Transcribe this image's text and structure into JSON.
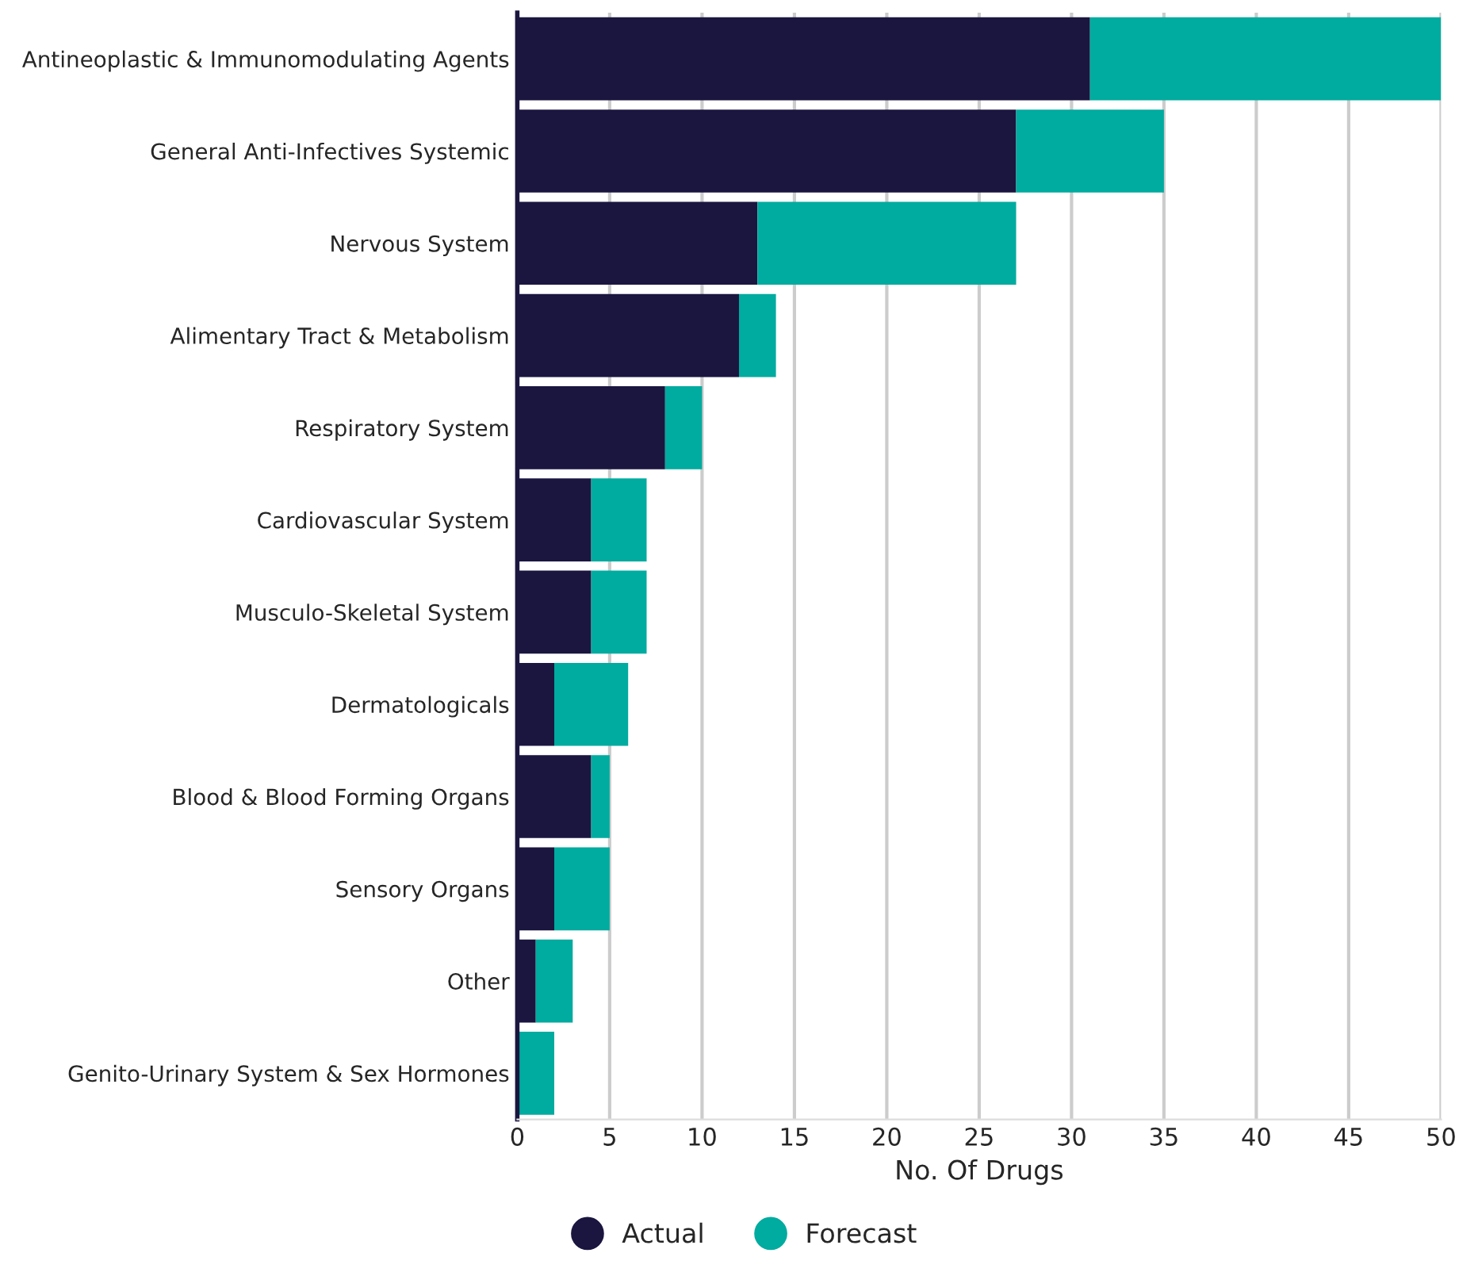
{
  "chart_data": {
    "type": "bar",
    "orientation": "horizontal",
    "stacked": true,
    "xlabel": "No. Of Drugs",
    "categories": [
      "Antineoplastic & Immunomodulating Agents",
      "General Anti-Infectives Systemic",
      "Nervous System",
      "Alimentary Tract & Metabolism",
      "Respiratory System",
      "Cardiovascular System",
      "Musculo-Skeletal System",
      "Dermatologicals",
      "Blood & Blood Forming Organs",
      "Sensory Organs",
      "Other",
      "Genito-Urinary System & Sex Hormones"
    ],
    "series": [
      {
        "name": "Actual",
        "color": "#1a1640",
        "values": [
          31,
          27,
          13,
          12,
          8,
          4,
          4,
          2,
          4,
          2,
          1,
          0
        ]
      },
      {
        "name": "Forecast",
        "color": "#00ab9f",
        "values": [
          19,
          8,
          14,
          2,
          2,
          3,
          3,
          4,
          1,
          3,
          2,
          2
        ]
      }
    ],
    "xlim": [
      0,
      50
    ],
    "xticks": [
      0,
      5,
      10,
      15,
      20,
      25,
      30,
      35,
      40,
      45,
      50
    ],
    "grid": "x",
    "legend": "bottom"
  }
}
